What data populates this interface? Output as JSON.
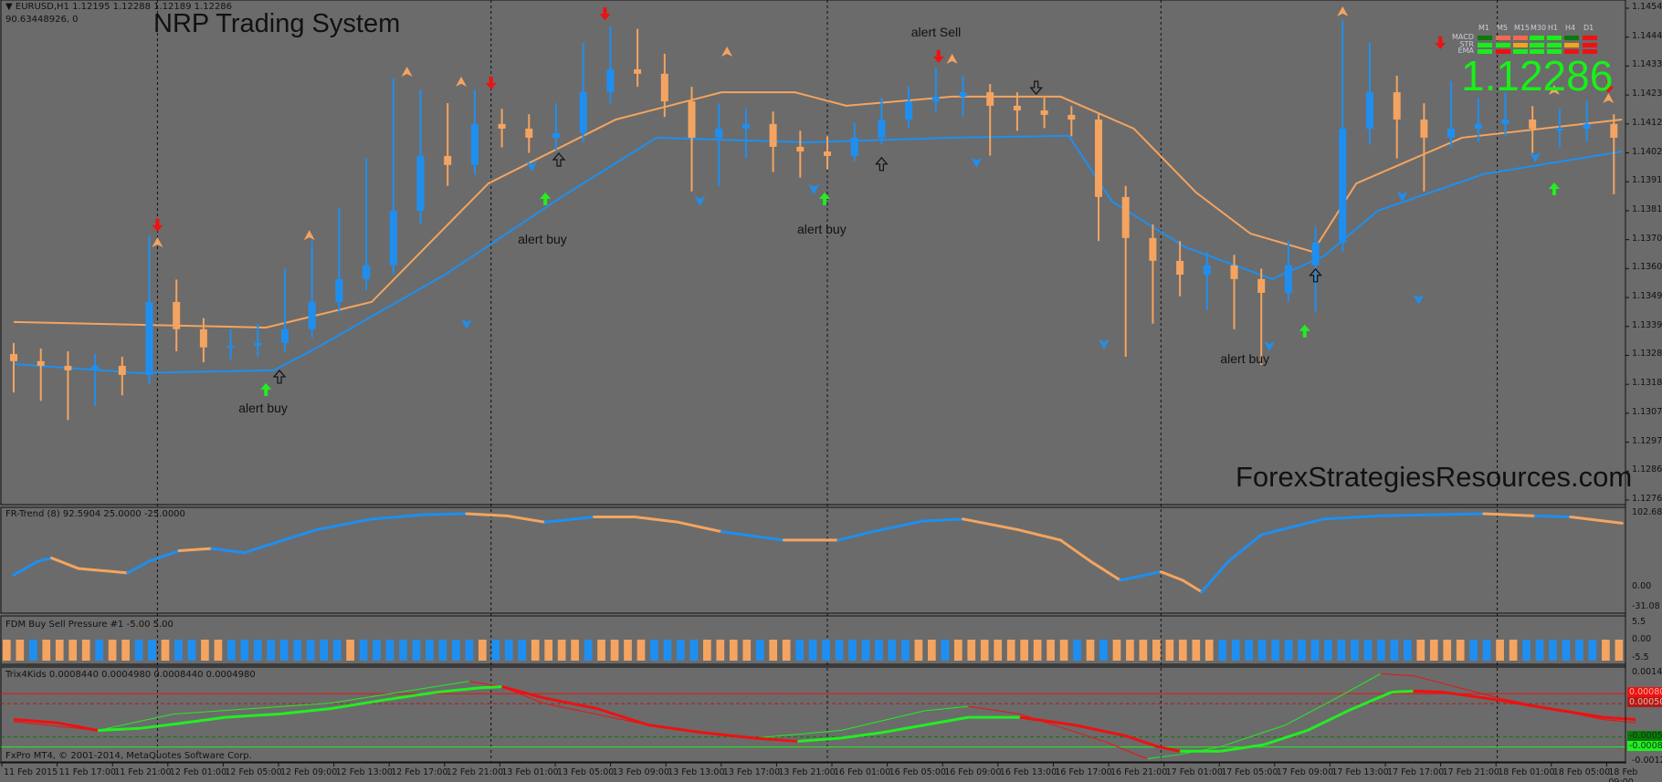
{
  "header": {
    "symbol_line": "EURUSD,H1  1.12195 1.12288 1.12189 1.12286",
    "sub_line": "90.63448926, 0",
    "title": "NRP Trading System",
    "watermark": "ForexStrategiesResources.com",
    "copyright": "FxPro MT4, © 2001-2014, MetaQuotes Software Corp."
  },
  "mtf_panel": {
    "timeframes": [
      "M1",
      "M5",
      "M15",
      "M30",
      "H1",
      "H4",
      "D1"
    ],
    "rows": [
      {
        "label": "MACD",
        "cells": [
          "#0a7a0a",
          "#f26a50",
          "#f26a50",
          "#19ee19",
          "#19ee19",
          "#0a7a0a",
          "#ee1111"
        ]
      },
      {
        "label": "STR",
        "cells": [
          "#19ee19",
          "#19ee19",
          "#f5a31a",
          "#19ee19",
          "#19ee19",
          "#f5a31a",
          "#ee1111"
        ]
      },
      {
        "label": "EMA",
        "cells": [
          "#19ee19",
          "#ee1111",
          "#19ee19",
          "#19ee19",
          "#19ee19",
          "#ee1111",
          "#ee1111"
        ]
      }
    ],
    "price": "1.12286"
  },
  "colors": {
    "up": "#1e8ff0",
    "down": "#f4a460",
    "background": "#6b6b6b",
    "price_text": "#18f018"
  },
  "price_axis": [
    "1.14545",
    "1.14440",
    "1.14335",
    "1.14230",
    "1.14125",
    "1.14020",
    "1.13915",
    "1.13810",
    "1.13705",
    "1.13600",
    "1.13495",
    "1.13390",
    "1.13285",
    "1.13180",
    "1.13075",
    "1.12970",
    "1.12865",
    "1.12760"
  ],
  "time_axis": [
    "11 Feb 2015",
    "11 Feb 17:00",
    "11 Feb 21:00",
    "12 Feb 01:00",
    "12 Feb 05:00",
    "12 Feb 09:00",
    "12 Feb 13:00",
    "12 Feb 17:00",
    "12 Feb 21:00",
    "13 Feb 01:00",
    "13 Feb 05:00",
    "13 Feb 09:00",
    "13 Feb 13:00",
    "13 Feb 17:00",
    "13 Feb 21:00",
    "16 Feb 01:00",
    "16 Feb 05:00",
    "16 Feb 09:00",
    "16 Feb 13:00",
    "16 Feb 17:00",
    "16 Feb 21:00",
    "17 Feb 01:00",
    "17 Feb 05:00",
    "17 Feb 09:00",
    "17 Feb 13:00",
    "17 Feb 17:00",
    "17 Feb 21:00",
    "18 Feb 01:00",
    "18 Feb 05:00",
    "18 Feb 09:00"
  ],
  "chart_data": {
    "type": "candlestick",
    "ylim": [
      1.1276,
      1.14545
    ],
    "candles": [
      [
        1.1329,
        1.1333,
        1.1315,
        1.13264
      ],
      [
        1.13264,
        1.1331,
        1.1312,
        1.13247
      ],
      [
        1.13247,
        1.133,
        1.1305,
        1.13231
      ],
      [
        1.13231,
        1.1329,
        1.131,
        1.13247
      ],
      [
        1.13247,
        1.1328,
        1.1314,
        1.13214
      ],
      [
        1.13214,
        1.1372,
        1.1318,
        1.13479
      ],
      [
        1.13479,
        1.1356,
        1.133,
        1.1338
      ],
      [
        1.1338,
        1.1342,
        1.1326,
        1.13314
      ],
      [
        1.13314,
        1.1338,
        1.1327,
        1.1332
      ],
      [
        1.1332,
        1.134,
        1.1328,
        1.1333
      ],
      [
        1.1333,
        1.136,
        1.133,
        1.1338
      ],
      [
        1.1338,
        1.137,
        1.1335,
        1.13479
      ],
      [
        1.13479,
        1.1382,
        1.1344,
        1.13562
      ],
      [
        1.13562,
        1.14,
        1.1352,
        1.13612
      ],
      [
        1.13612,
        1.1429,
        1.1358,
        1.1381
      ],
      [
        1.1381,
        1.1425,
        1.1376,
        1.14009
      ],
      [
        1.14009,
        1.142,
        1.139,
        1.13976
      ],
      [
        1.13976,
        1.1425,
        1.1394,
        1.14125
      ],
      [
        1.14125,
        1.1418,
        1.1404,
        1.14108
      ],
      [
        1.14108,
        1.1416,
        1.1402,
        1.14075
      ],
      [
        1.14075,
        1.142,
        1.1403,
        1.14092
      ],
      [
        1.14092,
        1.1442,
        1.1406,
        1.1424
      ],
      [
        1.1424,
        1.1448,
        1.142,
        1.14323
      ],
      [
        1.14323,
        1.1447,
        1.1426,
        1.14307
      ],
      [
        1.14307,
        1.1438,
        1.1415,
        1.14207
      ],
      [
        1.14207,
        1.1426,
        1.1388,
        1.14075
      ],
      [
        1.14075,
        1.142,
        1.139,
        1.14108
      ],
      [
        1.14108,
        1.1418,
        1.14,
        1.14125
      ],
      [
        1.14125,
        1.1417,
        1.1395,
        1.14042
      ],
      [
        1.14042,
        1.141,
        1.1393,
        1.14025
      ],
      [
        1.14025,
        1.1408,
        1.1396,
        1.14009
      ],
      [
        1.14009,
        1.1413,
        1.1399,
        1.14075
      ],
      [
        1.14075,
        1.1422,
        1.1405,
        1.14141
      ],
      [
        1.14141,
        1.1426,
        1.1411,
        1.14207
      ],
      [
        1.14207,
        1.1433,
        1.1417,
        1.14224
      ],
      [
        1.14224,
        1.143,
        1.1415,
        1.1424
      ],
      [
        1.1424,
        1.1427,
        1.1401,
        1.14191
      ],
      [
        1.14191,
        1.1424,
        1.141,
        1.14174
      ],
      [
        1.14174,
        1.1422,
        1.1411,
        1.14158
      ],
      [
        1.14158,
        1.1419,
        1.1408,
        1.14141
      ],
      [
        1.14141,
        1.1416,
        1.137,
        1.1386
      ],
      [
        1.1386,
        1.139,
        1.1328,
        1.13711
      ],
      [
        1.13711,
        1.1376,
        1.134,
        1.13628
      ],
      [
        1.13628,
        1.137,
        1.135,
        1.13578
      ],
      [
        1.13578,
        1.1366,
        1.1345,
        1.13612
      ],
      [
        1.13612,
        1.1365,
        1.1338,
        1.13562
      ],
      [
        1.13562,
        1.136,
        1.1325,
        1.13512
      ],
      [
        1.13512,
        1.137,
        1.1348,
        1.13612
      ],
      [
        1.13612,
        1.1375,
        1.1344,
        1.13694
      ],
      [
        1.13694,
        1.145,
        1.1366,
        1.14108
      ],
      [
        1.14108,
        1.1442,
        1.1405,
        1.1424
      ],
      [
        1.1424,
        1.143,
        1.14,
        1.14141
      ],
      [
        1.14141,
        1.142,
        1.1388,
        1.14075
      ],
      [
        1.14075,
        1.1428,
        1.1404,
        1.14108
      ],
      [
        1.14108,
        1.1422,
        1.1406,
        1.14125
      ],
      [
        1.14125,
        1.1424,
        1.1408,
        1.14141
      ],
      [
        1.14141,
        1.1419,
        1.1402,
        1.14108
      ],
      [
        1.14108,
        1.1418,
        1.1404,
        1.14108
      ],
      [
        1.14108,
        1.1421,
        1.1406,
        1.14125
      ],
      [
        1.14125,
        1.1416,
        1.1387,
        1.14075
      ]
    ],
    "upper_band": [
      [
        0,
        1.13406
      ],
      [
        9.3,
        1.13386
      ],
      [
        13.2,
        1.13479
      ],
      [
        17.5,
        1.13909
      ],
      [
        22.2,
        1.14141
      ],
      [
        26.1,
        1.1424
      ],
      [
        28.8,
        1.1424
      ],
      [
        30.7,
        1.14191
      ],
      [
        34.6,
        1.14224
      ],
      [
        38.6,
        1.14224
      ],
      [
        41.3,
        1.14108
      ],
      [
        43.6,
        1.13876
      ],
      [
        45.6,
        1.13727
      ],
      [
        47.9,
        1.13661
      ],
      [
        49.5,
        1.13909
      ],
      [
        53.4,
        1.14075
      ],
      [
        59.3,
        1.14141
      ]
    ],
    "lower_band": [
      [
        0,
        1.13254
      ],
      [
        4.6,
        1.13221
      ],
      [
        9.6,
        1.13231
      ],
      [
        11.2,
        1.13314
      ],
      [
        15.9,
        1.13578
      ],
      [
        20.2,
        1.1386
      ],
      [
        23.7,
        1.14075
      ],
      [
        29.2,
        1.14058
      ],
      [
        34.6,
        1.14075
      ],
      [
        38.9,
        1.14082
      ],
      [
        40.5,
        1.13843
      ],
      [
        43.2,
        1.13678
      ],
      [
        46.4,
        1.13562
      ],
      [
        48.3,
        1.13645
      ],
      [
        50.3,
        1.1381
      ],
      [
        54.2,
        1.13943
      ],
      [
        59.3,
        1.14025
      ]
    ],
    "signals": {
      "buy_arrows": [
        [
          9.3,
          1.13158
        ],
        [
          19.6,
          1.1385
        ],
        [
          29.9,
          1.1385
        ],
        [
          47.6,
          1.1337
        ],
        [
          56.8,
          1.13886
        ]
      ],
      "sell_arrows": [
        [
          5.3,
          1.13761
        ],
        [
          17.6,
          1.14277
        ],
        [
          21.8,
          1.14528
        ],
        [
          34.1,
          1.14373
        ],
        [
          52.6,
          1.14423
        ],
        [
          58.8,
          1.14264
        ]
      ],
      "hollow_up_arrows": [
        [
          9.8,
          1.13204
        ],
        [
          20.1,
          1.13992
        ],
        [
          32.0,
          1.13976
        ],
        [
          48.0,
          1.13572
        ]
      ],
      "hollow_down_arrows": [
        [
          37.7,
          1.1426
        ]
      ],
      "top_markers": [
        [
          5.3,
          1.13694
        ],
        [
          10.9,
          1.1372
        ],
        [
          14.5,
          1.14313
        ],
        [
          16.5,
          1.14277
        ],
        [
          26.3,
          1.14386
        ],
        [
          34.6,
          1.1436
        ],
        [
          49.0,
          1.14532
        ],
        [
          56.8,
          1.14247
        ],
        [
          58.8,
          1.14217
        ]
      ],
      "bottom_markers": [
        [
          16.7,
          1.134
        ],
        [
          19.1,
          1.13972
        ],
        [
          25.3,
          1.13847
        ],
        [
          29.5,
          1.1389
        ],
        [
          35.5,
          1.13986
        ],
        [
          40.2,
          1.13327
        ],
        [
          46.3,
          1.1332
        ],
        [
          51.2,
          1.13863
        ],
        [
          56.1,
          1.14005
        ],
        [
          51.8,
          1.13489
        ]
      ]
    },
    "alerts": [
      {
        "text": "alert  buy",
        "bar": 9.3,
        "price": 1.13092
      },
      {
        "text": "alert  buy",
        "bar": 19.6,
        "price": 1.13704
      },
      {
        "text": "alert  buy",
        "bar": 29.9,
        "price": 1.13741
      },
      {
        "text": "alert buy",
        "bar": 45.5,
        "price": 1.13271
      },
      {
        "text": "alert Sell",
        "bar": 34.1,
        "price": 1.14456
      }
    ]
  },
  "fr_trend": {
    "label": "FR-Trend (8) 92.5904 25.0000 -25.0000",
    "axis": [
      "102.6801",
      "0.00",
      "-31.08"
    ],
    "ylim": [
      -31.08,
      102.6801
    ],
    "points": [
      [
        0,
        17.6,
        "u"
      ],
      [
        0.9,
        36.7,
        "u"
      ],
      [
        1.4,
        41.1,
        "d"
      ],
      [
        2.4,
        26.4,
        "d"
      ],
      [
        4.2,
        20.5,
        "u"
      ],
      [
        5.0,
        36.7,
        "u"
      ],
      [
        6.1,
        51.3,
        "d"
      ],
      [
        7.3,
        54.3,
        "u"
      ],
      [
        8.5,
        48.4,
        "u"
      ],
      [
        9.7,
        63.1,
        "u"
      ],
      [
        11.2,
        80.7,
        "u"
      ],
      [
        13.2,
        95.3,
        "u"
      ],
      [
        15.1,
        101.2,
        "u"
      ],
      [
        16.7,
        102.7,
        "d"
      ],
      [
        18.2,
        99.7,
        "d"
      ],
      [
        19.6,
        90.9,
        "u"
      ],
      [
        21.4,
        98.2,
        "d"
      ],
      [
        22.9,
        98.2,
        "d"
      ],
      [
        24.5,
        90.9,
        "d"
      ],
      [
        26.1,
        77.7,
        "u"
      ],
      [
        28.4,
        66.0,
        "d"
      ],
      [
        30.4,
        66.0,
        "u"
      ],
      [
        31.5,
        76.3,
        "u"
      ],
      [
        33.5,
        92.4,
        "u"
      ],
      [
        35.0,
        95.3,
        "d"
      ],
      [
        37.0,
        80.7,
        "d"
      ],
      [
        38.6,
        66.0,
        "d"
      ],
      [
        39.7,
        36.7,
        "d"
      ],
      [
        40.8,
        10.3,
        "u"
      ],
      [
        42.3,
        22.0,
        "d"
      ],
      [
        43.1,
        10.3,
        "d"
      ],
      [
        43.8,
        -5.9,
        "u"
      ],
      [
        44.8,
        36.7,
        "u"
      ],
      [
        46.0,
        73.4,
        "u"
      ],
      [
        48.3,
        95.3,
        "u"
      ],
      [
        50.3,
        99.7,
        "u"
      ],
      [
        54.2,
        102.7,
        "d"
      ],
      [
        56.1,
        99.7,
        "u"
      ],
      [
        57.4,
        98.2,
        "d"
      ],
      [
        59.3,
        89.5,
        "d"
      ]
    ]
  },
  "fdm": {
    "label": "FDM Buy Sell Pressure #1 -5.00 5.00",
    "axis": [
      "5.5",
      "0.00",
      "-5.5"
    ],
    "bars": "oobooooboobbobboobbbbbbbbbobbbbbbbbbobbbooooboooobbbbooooboobbbbbbbbbooboooooooooboboooooooobbbbbbbbbbbbbbboooobboobbbbbboo"
  },
  "trix": {
    "label": "Trix4Kids 0.0008440 0.0004980 0.0008440 0.0004980",
    "axis_top": "0.001436",
    "axis_bottom": "-0.001223",
    "ylim": [
      -0.001223,
      0.001436
    ],
    "levels": [
      {
        "value": 0.0008,
        "label": "0.000800",
        "color": "#ee1111",
        "style": "solid"
      },
      {
        "value": 0.0005,
        "label": "0.000500",
        "color": "#b01a1a",
        "style": "dashed"
      },
      {
        "value": -0.0005,
        "label": "-0.000500",
        "color": "#0a7a0a",
        "style": "dashed"
      },
      {
        "value": -0.0008,
        "label": "-0.000800",
        "color": "#22ee22",
        "style": "solid"
      }
    ],
    "main": [
      [
        0,
        2.4e-05
      ],
      [
        1.6,
        -7.4e-05
      ],
      [
        3.1,
        -0.000304
      ],
      [
        4.7,
        -0.000238
      ],
      [
        6.3,
        -7.4e-05
      ],
      [
        7.8,
        9e-05
      ],
      [
        9.8,
        0.000188
      ],
      [
        11.7,
        0.000353
      ],
      [
        13.7,
        0.000615
      ],
      [
        15.6,
        0.000845
      ],
      [
        17.2,
        0.000976
      ],
      [
        18.0,
        0.001009
      ],
      [
        19.5,
        0.000681
      ],
      [
        21.5,
        0.000353
      ],
      [
        23.4,
        -0.00014
      ],
      [
        25.4,
        -0.00037
      ],
      [
        27.3,
        -0.000534
      ],
      [
        28.9,
        -0.000632
      ],
      [
        30.5,
        -0.000534
      ],
      [
        32.0,
        -0.00037
      ],
      [
        33.6,
        -0.00014
      ],
      [
        35.2,
        9e-05
      ],
      [
        37.1,
        9e-05
      ],
      [
        39.1,
        -0.00014
      ],
      [
        41.0,
        -0.000468
      ],
      [
        42.2,
        -0.000796
      ],
      [
        43.0,
        -0.000928
      ],
      [
        44.5,
        -0.000928
      ],
      [
        46.1,
        -0.000731
      ],
      [
        47.7,
        -0.000304
      ],
      [
        49.2,
        0.000287
      ],
      [
        50.8,
        0.000845
      ],
      [
        51.6,
        0.000878
      ],
      [
        52.7,
        0.000845
      ],
      [
        54.7,
        0.000615
      ],
      [
        56.6,
        0.000353
      ],
      [
        58.6,
        9e-05
      ],
      [
        59.8,
        2.4e-05
      ]
    ],
    "signal": [
      [
        0,
        -4.1e-05
      ],
      [
        3.1,
        -0.000304
      ],
      [
        5.9,
        0.000188
      ],
      [
        11.7,
        0.000517
      ],
      [
        16.8,
        0.001173
      ],
      [
        18.0,
        0.001009
      ],
      [
        19.5,
        0.000517
      ],
      [
        23.4,
        -0.00014
      ],
      [
        27.3,
        -0.000534
      ],
      [
        30.5,
        -0.000304
      ],
      [
        33.6,
        0.000287
      ],
      [
        35.2,
        0.000418
      ],
      [
        37.1,
        0.000188
      ],
      [
        40.2,
        -0.000632
      ],
      [
        41.8,
        -0.001158
      ],
      [
        43.0,
        -0.001026
      ],
      [
        44.5,
        -0.000796
      ],
      [
        46.9,
        -0.00014
      ],
      [
        48.8,
        0.000681
      ],
      [
        50.4,
        0.0014
      ],
      [
        51.6,
        0.001338
      ],
      [
        54.7,
        0.000681
      ],
      [
        58.6,
        2.4e-05
      ],
      [
        59.8,
        -7.4e-05
      ]
    ]
  }
}
